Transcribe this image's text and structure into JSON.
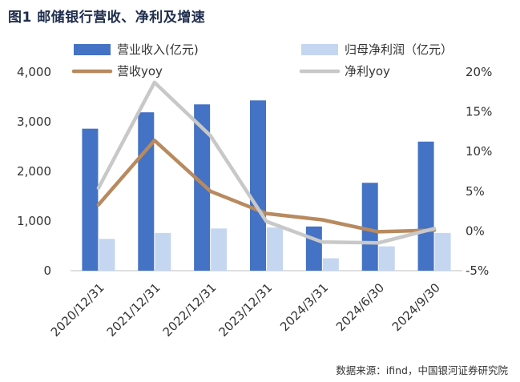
{
  "chart_data": {
    "type": "bar",
    "title": "图1  邮储银行营收、净利及增速",
    "categories": [
      "2020/12/31",
      "2021/12/31",
      "2022/12/31",
      "2023/12/31",
      "2024/3/31",
      "2024/6/30",
      "2024/9/30"
    ],
    "bar_series": [
      {
        "name": "营业收入(亿元)",
        "values": [
          2860,
          3190,
          3350,
          3430,
          890,
          1770,
          2600
        ],
        "color": "#4472C4"
      },
      {
        "name": "归母净利润（亿元）",
        "values": [
          640,
          760,
          850,
          870,
          250,
          490,
          760
        ],
        "color": "#C5D6F0"
      }
    ],
    "line_series": [
      {
        "name": "营收yoy",
        "values": [
          3.3,
          11.4,
          5.0,
          2.2,
          1.4,
          -0.1,
          0.1
        ],
        "color": "#B88A5F"
      },
      {
        "name": "净利yoy",
        "values": [
          5.4,
          18.7,
          12.0,
          1.2,
          -1.4,
          -1.5,
          0.3
        ],
        "color": "#C8C8C8"
      }
    ],
    "y_left": {
      "range": [
        0,
        4000
      ],
      "ticks": [
        0,
        1000,
        2000,
        3000,
        4000
      ],
      "labels": [
        "0",
        "1,000",
        "2,000",
        "3,000",
        "4,000"
      ]
    },
    "y_right": {
      "range": [
        -5,
        20
      ],
      "ticks": [
        -5,
        0,
        5,
        10,
        15,
        20
      ],
      "labels": [
        "-5%",
        "0%",
        "5%",
        "10%",
        "15%",
        "20%"
      ]
    },
    "legend_position": "top",
    "grid": false
  },
  "source": "数据来源：ifind，中国银河证券研究院"
}
